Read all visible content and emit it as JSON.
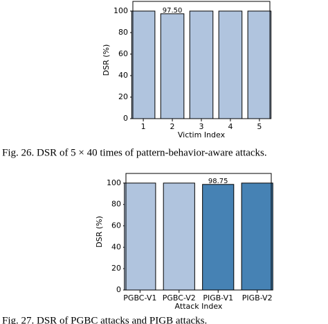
{
  "chart_data": [
    {
      "type": "bar",
      "caption": "Fig. 26.   DSR of 5 × 40 times of pattern-behavior-aware attacks.",
      "categories": [
        "1",
        "2",
        "3",
        "4",
        "5"
      ],
      "values": [
        100,
        97.5,
        100,
        100,
        100
      ],
      "value_labels": [
        null,
        "97.50",
        null,
        null,
        null
      ],
      "colors": [
        "#b0c4de",
        "#b0c4de",
        "#b0c4de",
        "#b0c4de",
        "#b0c4de"
      ],
      "ylabel": "DSR (%)",
      "xlabel": "Victim Index",
      "ylim": [
        0,
        109
      ],
      "yticks": [
        0,
        20,
        40,
        60,
        80,
        100
      ]
    },
    {
      "type": "bar",
      "caption": "Fig. 27.   DSR of PGBC attacks and PIGB attacks.",
      "categories": [
        "PGBC-V1",
        "PGBC-V2",
        "PIGB-V1",
        "PIGB-V2"
      ],
      "values": [
        100,
        100,
        98.75,
        100
      ],
      "value_labels": [
        null,
        null,
        "98.75",
        null
      ],
      "colors": [
        "#b0c4de",
        "#b0c4de",
        "#4682b4",
        "#4682b4"
      ],
      "ylabel": "DSR (%)",
      "xlabel": "Attack Index",
      "ylim": [
        0,
        109
      ],
      "yticks": [
        0,
        20,
        40,
        60,
        80,
        100
      ]
    }
  ]
}
